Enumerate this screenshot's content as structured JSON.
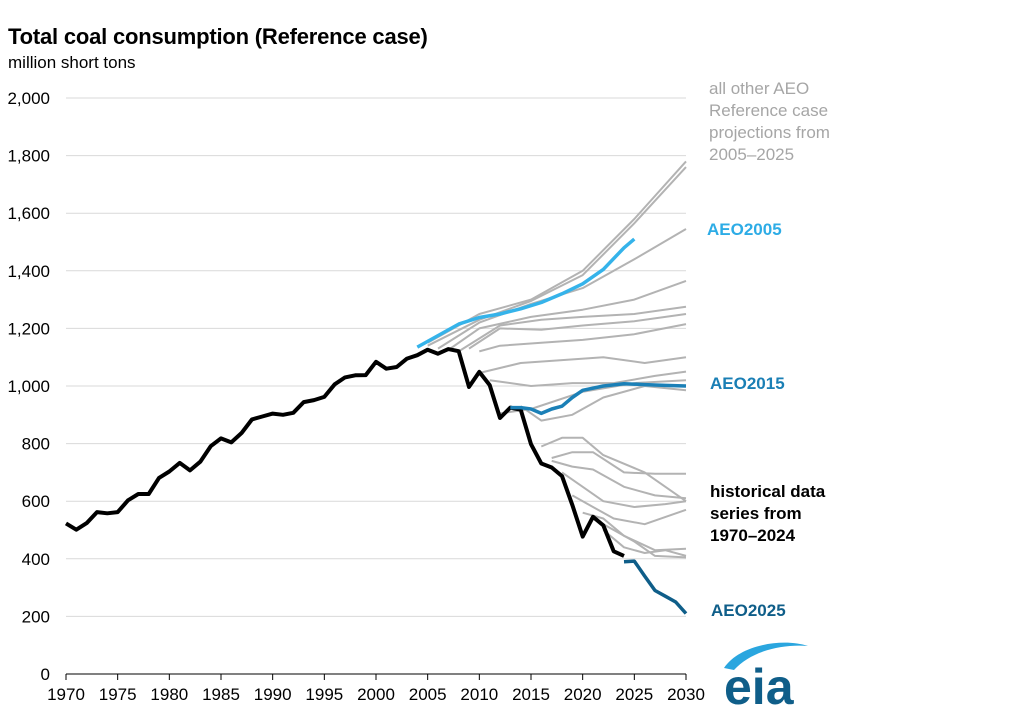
{
  "title": "Total coal consumption (Reference case)",
  "subtitle": "million short tons",
  "logo_text": "eia",
  "colors": {
    "historical": "#000000",
    "other": "#b3b3b3",
    "aeo2005": "#35b3ea",
    "aeo2015": "#1b80b7",
    "aeo2025": "#0f5e89",
    "grid": "#d9d9d9",
    "logo_swoosh": "#2aa6df",
    "logo_text": "#0f5e89"
  },
  "labels": {
    "other": "all other AEO Reference case projections from 2005–2025",
    "aeo2005": "AEO2005",
    "aeo2015": "AEO2015",
    "historical": "historical data series from 1970–2024",
    "aeo2025": "AEO2025"
  },
  "chart_data": {
    "type": "line",
    "title": "Total coal consumption (Reference case)",
    "ylabel": "million short tons",
    "xlim": [
      1970,
      2030
    ],
    "ylim": [
      0,
      2000
    ],
    "x_ticks": [
      "1970",
      "1975",
      "1980",
      "1985",
      "1990",
      "1995",
      "2000",
      "2005",
      "2010",
      "2015",
      "2020",
      "2025",
      "2030"
    ],
    "y_ticks": [
      "0",
      "200",
      "400",
      "600",
      "800",
      "1,000",
      "1,200",
      "1,400",
      "1,600",
      "1,800",
      "2,000"
    ],
    "grid": true,
    "legend": "direct labels at right",
    "historical": {
      "name": "historical data series from 1970–2024",
      "x": [
        1970,
        1971,
        1972,
        1973,
        1974,
        1975,
        1976,
        1977,
        1978,
        1979,
        1980,
        1981,
        1982,
        1983,
        1984,
        1985,
        1986,
        1987,
        1988,
        1989,
        1990,
        1991,
        1992,
        1993,
        1994,
        1995,
        1996,
        1997,
        1998,
        1999,
        2000,
        2001,
        2002,
        2003,
        2004,
        2005,
        2006,
        2007,
        2008,
        2009,
        2010,
        2011,
        2012,
        2013,
        2014,
        2015,
        2016,
        2017,
        2018,
        2019,
        2020,
        2021,
        2022,
        2023,
        2024
      ],
      "y": [
        523,
        501,
        524,
        562,
        558,
        562,
        603,
        625,
        625,
        681,
        703,
        733,
        707,
        737,
        791,
        818,
        804,
        837,
        884,
        894,
        904,
        900,
        907,
        944,
        951,
        962,
        1006,
        1030,
        1037,
        1038,
        1084,
        1060,
        1066,
        1095,
        1107,
        1126,
        1112,
        1128,
        1121,
        997,
        1049,
        1003,
        889,
        925,
        918,
        798,
        731,
        717,
        687,
        587,
        477,
        546,
        516,
        426,
        410
      ]
    },
    "highlighted": [
      {
        "name": "AEO2005",
        "x": [
          2004,
          2006,
          2008,
          2010,
          2012,
          2014,
          2016,
          2018,
          2020,
          2022,
          2024,
          2025
        ],
        "y": [
          1135,
          1175,
          1215,
          1238,
          1250,
          1268,
          1290,
          1320,
          1355,
          1405,
          1480,
          1510
        ]
      },
      {
        "name": "AEO2015",
        "x": [
          2013,
          2014,
          2015,
          2016,
          2017,
          2018,
          2019,
          2020,
          2022,
          2024,
          2026,
          2028,
          2030
        ],
        "y": [
          925,
          925,
          920,
          905,
          920,
          930,
          960,
          985,
          1000,
          1008,
          1005,
          1002,
          1000
        ]
      },
      {
        "name": "AEO2025",
        "x": [
          2024,
          2025,
          2026,
          2027,
          2028,
          2029,
          2030
        ],
        "y": [
          390,
          392,
          340,
          290,
          270,
          250,
          210
        ]
      }
    ],
    "other_projections": [
      {
        "x": [
          2005,
          2010,
          2015,
          2020,
          2025,
          2030
        ],
        "y": [
          1150,
          1250,
          1300,
          1400,
          1580,
          1780
        ]
      },
      {
        "x": [
          2005,
          2010,
          2015,
          2020,
          2025,
          2030
        ],
        "y": [
          1140,
          1230,
          1295,
          1385,
          1565,
          1760
        ]
      },
      {
        "x": [
          2006,
          2010,
          2015,
          2020,
          2025,
          2030
        ],
        "y": [
          1130,
          1220,
          1285,
          1340,
          1440,
          1545
        ]
      },
      {
        "x": [
          2007,
          2010,
          2015,
          2020,
          2025,
          2030
        ],
        "y": [
          1125,
          1200,
          1240,
          1265,
          1300,
          1365
        ]
      },
      {
        "x": [
          2008,
          2012,
          2016,
          2020,
          2025,
          2030
        ],
        "y": [
          1120,
          1210,
          1230,
          1240,
          1250,
          1275
        ]
      },
      {
        "x": [
          2009,
          2012,
          2016,
          2020,
          2025,
          2030
        ],
        "y": [
          1130,
          1200,
          1195,
          1210,
          1225,
          1250
        ]
      },
      {
        "x": [
          2010,
          2012,
          2016,
          2020,
          2025,
          2030
        ],
        "y": [
          1120,
          1140,
          1150,
          1160,
          1180,
          1215
        ]
      },
      {
        "x": [
          2010,
          2014,
          2018,
          2022,
          2026,
          2030
        ],
        "y": [
          1045,
          1080,
          1090,
          1100,
          1080,
          1100
        ]
      },
      {
        "x": [
          2011,
          2015,
          2019,
          2023,
          2027,
          2030
        ],
        "y": [
          1020,
          1000,
          1010,
          1010,
          1035,
          1050
        ]
      },
      {
        "x": [
          2012,
          2015,
          2020,
          2025,
          2030
        ],
        "y": [
          905,
          920,
          980,
          1010,
          1020
        ]
      },
      {
        "x": [
          2014,
          2016,
          2019,
          2022,
          2026,
          2030
        ],
        "y": [
          930,
          880,
          900,
          960,
          1000,
          985
        ]
      },
      {
        "x": [
          2016,
          2018,
          2020,
          2022,
          2026,
          2030
        ],
        "y": [
          790,
          820,
          820,
          760,
          700,
          600
        ]
      },
      {
        "x": [
          2017,
          2019,
          2021,
          2024,
          2027,
          2030
        ],
        "y": [
          750,
          770,
          770,
          700,
          695,
          695
        ]
      },
      {
        "x": [
          2017,
          2019,
          2021,
          2024,
          2027,
          2030
        ],
        "y": [
          740,
          720,
          710,
          650,
          620,
          610
        ]
      },
      {
        "x": [
          2018,
          2020,
          2022,
          2025,
          2028,
          2030
        ],
        "y": [
          700,
          650,
          600,
          580,
          590,
          600
        ]
      },
      {
        "x": [
          2019,
          2021,
          2023,
          2026,
          2030
        ],
        "y": [
          620,
          580,
          540,
          520,
          570
        ]
      },
      {
        "x": [
          2020,
          2022,
          2024,
          2027,
          2030
        ],
        "y": [
          560,
          540,
          480,
          430,
          435
        ]
      },
      {
        "x": [
          2021,
          2023,
          2025,
          2027,
          2030
        ],
        "y": [
          540,
          500,
          460,
          410,
          405
        ]
      },
      {
        "x": [
          2022,
          2024,
          2026,
          2028,
          2030
        ],
        "y": [
          500,
          440,
          420,
          430,
          410
        ]
      }
    ]
  }
}
